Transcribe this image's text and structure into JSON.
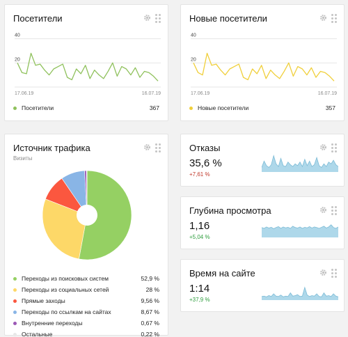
{
  "visitors_card": {
    "title": "Посетители",
    "chart_data": {
      "type": "line",
      "x_start_label": "17.06.19",
      "x_end_label": "16.07.19",
      "y_ticks": [
        20,
        40
      ],
      "ylim": [
        0,
        45
      ],
      "color": "#8fc15c",
      "values": [
        20,
        12,
        11,
        28,
        18,
        19,
        14,
        10,
        15,
        17,
        19,
        8,
        6,
        15,
        11,
        18,
        7,
        14,
        10,
        7,
        13,
        20,
        9,
        17,
        15,
        10,
        16,
        8,
        13,
        12,
        9,
        5
      ],
      "series_name": "Посетители",
      "total": "367"
    }
  },
  "new_visitors_card": {
    "title": "Новые посетители",
    "chart_data": {
      "type": "line",
      "x_start_label": "17.06.19",
      "x_end_label": "16.07.19",
      "y_ticks": [
        20,
        40
      ],
      "ylim": [
        0,
        45
      ],
      "color": "#f0cf3a",
      "values": [
        20,
        12,
        10,
        28,
        18,
        19,
        14,
        10,
        15,
        17,
        19,
        8,
        6,
        15,
        11,
        18,
        7,
        14,
        10,
        7,
        13,
        20,
        9,
        17,
        15,
        10,
        16,
        8,
        13,
        12,
        9,
        5
      ],
      "series_name": "Новые посетители",
      "total": "357"
    }
  },
  "traffic_card": {
    "title": "Источник трафика",
    "subtitle": "Визиты",
    "chart_data": {
      "type": "pie",
      "slices": [
        {
          "label": "Переходы из поисковых систем",
          "value": "52,9 %",
          "pct": 52.9,
          "color": "#95d063"
        },
        {
          "label": "Переходы из социальных сетей",
          "value": "28 %",
          "pct": 28.0,
          "color": "#fdd868"
        },
        {
          "label": "Прямые заходы",
          "value": "9,56 %",
          "pct": 9.56,
          "color": "#fb573f"
        },
        {
          "label": "Переходы по ссылкам на сайтах",
          "value": "8,67 %",
          "pct": 8.67,
          "color": "#89b5e6"
        },
        {
          "label": "Внутренние переходы",
          "value": "0,67 %",
          "pct": 0.67,
          "color": "#9b59b6"
        },
        {
          "label": "Остальные",
          "value": "0,22 %",
          "pct": 0.22,
          "color": "#e8e8e8"
        }
      ]
    }
  },
  "bounces_card": {
    "title": "Отказы",
    "value": "35,6 %",
    "delta": "+7,61 %",
    "delta_color": "#c0392b",
    "spark": [
      25,
      60,
      35,
      25,
      40,
      90,
      45,
      30,
      75,
      35,
      30,
      55,
      40,
      30,
      45,
      35,
      55,
      30,
      70,
      35,
      60,
      30,
      40,
      80,
      35,
      25,
      45,
      30,
      55,
      45,
      65,
      40,
      30
    ]
  },
  "depth_card": {
    "title": "Глубина просмотра",
    "value": "1,16",
    "delta": "+5,04 %",
    "delta_color": "#2e9d3d",
    "spark": [
      55,
      50,
      58,
      52,
      56,
      48,
      55,
      60,
      50,
      58,
      53,
      56,
      50,
      62,
      55,
      52,
      58,
      50,
      56,
      53,
      60,
      52,
      58,
      55,
      50,
      56,
      62,
      52,
      58,
      70,
      55,
      50,
      58
    ]
  },
  "time_card": {
    "title": "Время на сайте",
    "value": "1:14",
    "delta": "+37,9 %",
    "delta_color": "#2e9d3d",
    "spark": [
      20,
      22,
      18,
      25,
      20,
      35,
      22,
      20,
      28,
      18,
      22,
      20,
      40,
      22,
      25,
      30,
      20,
      22,
      70,
      28,
      20,
      25,
      22,
      35,
      20,
      18,
      40,
      22,
      25,
      20,
      35,
      22,
      18
    ]
  },
  "colors": {
    "spark_fill": "#aed8ea",
    "spark_stroke": "#7cbbd6",
    "grid": "#e6e6e6",
    "axis_text": "#888888"
  }
}
